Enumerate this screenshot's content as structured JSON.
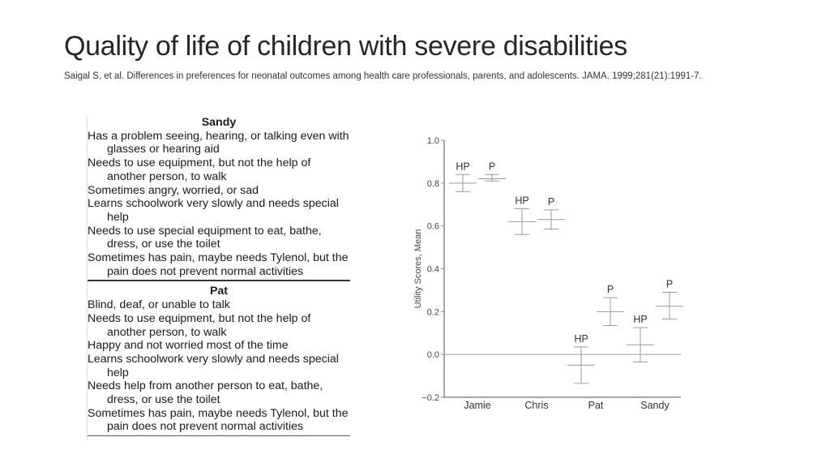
{
  "slide": {
    "title": "Quality of life of children with severe disabilities",
    "citation": "Saigal S, et al. Differences in preferences for neonatal outcomes among health care professionals, parents, and adolescents. JAMA. 1999;281(21):1991-7."
  },
  "profiles": [
    {
      "name": "Sandy",
      "attributes": [
        "Has a problem seeing, hearing, or talking even with glasses or hearing aid",
        "Needs to use equipment, but not the help of another person, to walk",
        "Sometimes angry, worried, or sad",
        "Learns schoolwork very slowly and needs special help",
        "Needs to use special equipment to eat, bathe, dress, or use the toilet",
        "Sometimes has pain, maybe needs Tylenol, but the pain does not prevent normal activities"
      ]
    },
    {
      "name": "Pat",
      "attributes": [
        "Blind, deaf, or unable to talk",
        "Needs to use equipment, but not the help of another person, to walk",
        "Happy and not worried most of the time",
        "Learns schoolwork very slowly and needs special help",
        "Needs help from another person to eat, bathe, dress, or use the toilet",
        "Sometimes has pain, maybe needs Tylenol, but the pain does not prevent normal activities"
      ]
    }
  ],
  "chart_data": {
    "type": "scatter",
    "subtype": "mean with error bars",
    "title": "",
    "xlabel": "",
    "ylabel": "Utility Scores, Mean",
    "ylim": [
      -0.2,
      1.0
    ],
    "yticks": [
      "1.0",
      "0.8",
      "0.6",
      "0.4",
      "0.2",
      "0.0",
      "−0.2"
    ],
    "ytick_values": [
      1.0,
      0.8,
      0.6,
      0.4,
      0.2,
      0.0,
      -0.2
    ],
    "categories": [
      "Jamie",
      "Chris",
      "Pat",
      "Sandy"
    ],
    "reference_line": 0.0,
    "grid": false,
    "color": "#9a9a9a",
    "series": [
      {
        "name": "HP",
        "mean": [
          0.8,
          0.62,
          -0.05,
          0.045
        ],
        "lower": [
          0.76,
          0.56,
          -0.135,
          -0.035
        ],
        "upper": [
          0.84,
          0.68,
          0.035,
          0.125
        ]
      },
      {
        "name": "P",
        "mean": [
          0.82,
          0.63,
          0.2,
          0.225
        ],
        "lower": [
          0.81,
          0.585,
          0.135,
          0.165
        ],
        "upper": [
          0.84,
          0.675,
          0.265,
          0.29
        ]
      }
    ]
  }
}
